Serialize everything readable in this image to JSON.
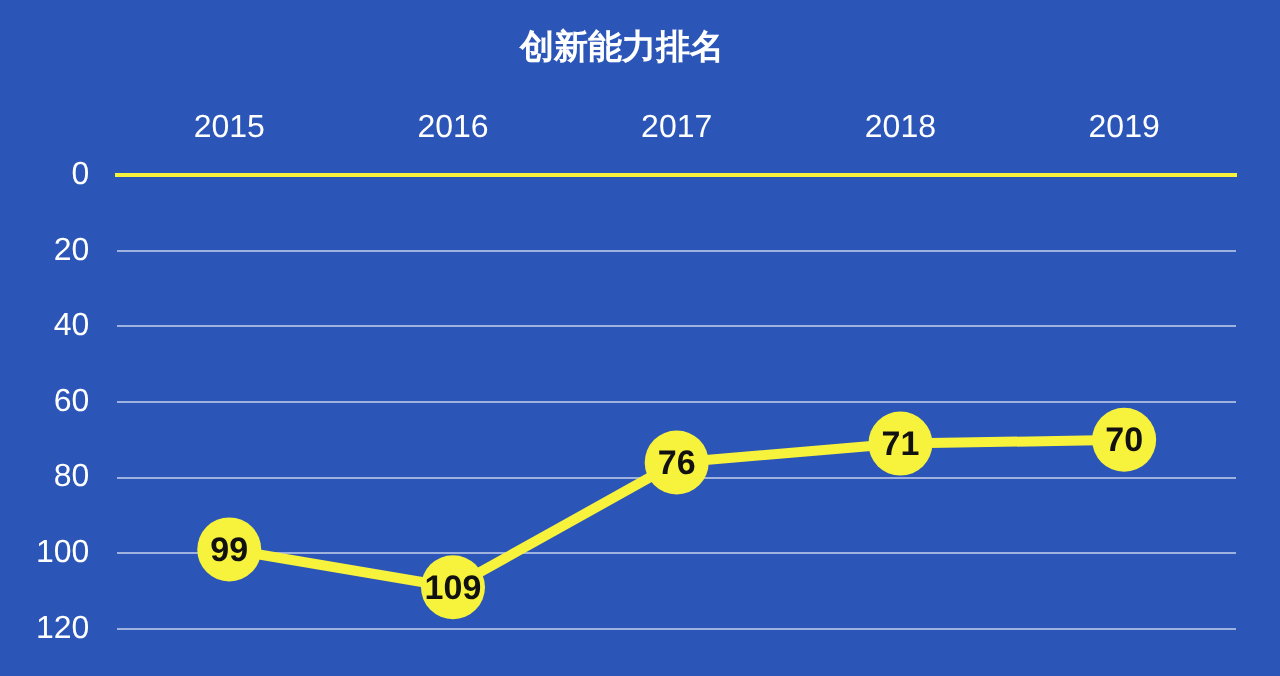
{
  "chart_data": {
    "type": "line",
    "title": "创新能力排名",
    "categories": [
      "2015",
      "2016",
      "2017",
      "2018",
      "2019"
    ],
    "series": [
      {
        "color": "#f7f23b",
        "values": [
          99,
          109,
          76,
          71,
          70
        ]
      }
    ],
    "ylim": [
      120,
      0
    ],
    "yticks": [
      0,
      20,
      40,
      60,
      80,
      100,
      120
    ],
    "grid": "y",
    "legend": false,
    "marker": "circle",
    "line_style": "solid",
    "data_labels": true
  }
}
